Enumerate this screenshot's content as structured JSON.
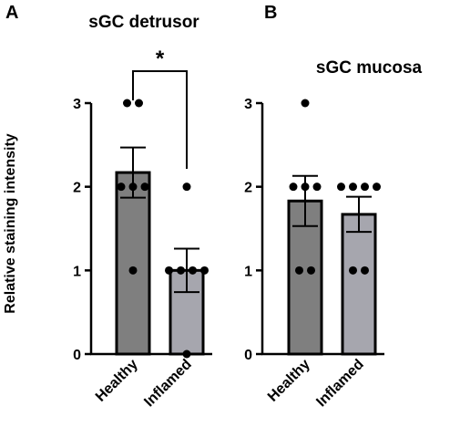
{
  "panel_letters": [
    "A",
    "B"
  ],
  "ylabel": "Relative staining intensity",
  "chart_data": [
    {
      "type": "bar",
      "panel": "A",
      "title": "sGC detrusor",
      "categories": [
        "Healthy",
        "Inflamed"
      ],
      "values": [
        2.17,
        1.0
      ],
      "error": [
        0.3,
        0.26
      ],
      "points": [
        [
          3,
          3,
          2,
          2,
          2,
          1
        ],
        [
          2,
          1,
          1,
          1,
          1,
          0
        ]
      ],
      "bar_colors": [
        "#7f7f7f",
        "#a6a6ae"
      ],
      "ylim": [
        0,
        3
      ],
      "yticks": [
        "0",
        "1",
        "2",
        "3"
      ],
      "significance": "*"
    },
    {
      "type": "bar",
      "panel": "B",
      "title": "sGC mucosa",
      "categories": [
        "Healthy",
        "Inflamed"
      ],
      "values": [
        1.83,
        1.67
      ],
      "error": [
        0.3,
        0.21
      ],
      "points": [
        [
          3,
          2,
          2,
          2,
          1,
          1
        ],
        [
          2,
          2,
          2,
          2,
          1,
          1
        ]
      ],
      "bar_colors": [
        "#7f7f7f",
        "#a6a6ae"
      ],
      "ylim": [
        0,
        3
      ],
      "yticks": [
        "0",
        "1",
        "2",
        "3"
      ]
    }
  ]
}
